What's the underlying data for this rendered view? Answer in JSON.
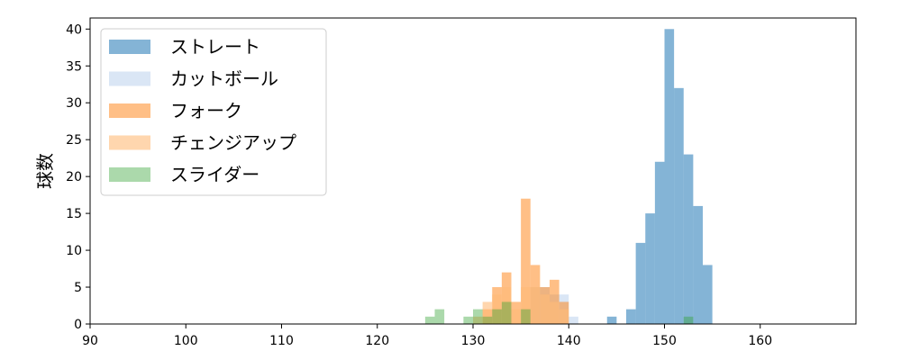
{
  "chart_data": {
    "type": "bar",
    "subtype": "overlaid-histogram",
    "ylabel": "球数",
    "xlim": [
      90,
      170
    ],
    "ylim": [
      0,
      41.5
    ],
    "xticks": [
      90,
      100,
      110,
      120,
      130,
      140,
      150,
      160
    ],
    "yticks": [
      0,
      5,
      10,
      15,
      20,
      25,
      30,
      35,
      40
    ],
    "bin_width": 1,
    "legend_position": "upper-left",
    "series": [
      {
        "name": "ストレート",
        "color": "#1f77b4",
        "opacity": 0.55,
        "bins": [
          [
            144,
            1
          ],
          [
            146,
            2
          ],
          [
            147,
            11
          ],
          [
            148,
            15
          ],
          [
            149,
            22
          ],
          [
            150,
            40
          ],
          [
            151,
            32
          ],
          [
            152,
            23
          ],
          [
            153,
            16
          ],
          [
            154,
            8
          ]
        ]
      },
      {
        "name": "カットボール",
        "color": "#aec7e8",
        "opacity": 0.45,
        "bins": [
          [
            136,
            5
          ],
          [
            137,
            5
          ],
          [
            138,
            4
          ],
          [
            139,
            4
          ],
          [
            140,
            1
          ]
        ]
      },
      {
        "name": "フォーク",
        "color": "#ff7f0e",
        "opacity": 0.5,
        "bins": [
          [
            131,
            2
          ],
          [
            132,
            5
          ],
          [
            133,
            7
          ],
          [
            134,
            3
          ],
          [
            135,
            17
          ],
          [
            136,
            8
          ],
          [
            137,
            5
          ],
          [
            138,
            6
          ],
          [
            139,
            3
          ]
        ]
      },
      {
        "name": "チェンジアップ",
        "color": "#ffbb78",
        "opacity": 0.6,
        "bins": [
          [
            130,
            1
          ],
          [
            131,
            3
          ],
          [
            132,
            4
          ],
          [
            133,
            5
          ],
          [
            134,
            2
          ],
          [
            135,
            5
          ],
          [
            136,
            5
          ],
          [
            137,
            4
          ],
          [
            138,
            3
          ],
          [
            139,
            2
          ]
        ]
      },
      {
        "name": "スライダー",
        "color": "#2ca02c",
        "opacity": 0.4,
        "bins": [
          [
            125,
            1
          ],
          [
            126,
            2
          ],
          [
            129,
            1
          ],
          [
            130,
            2
          ],
          [
            131,
            1
          ],
          [
            132,
            2
          ],
          [
            133,
            3
          ],
          [
            135,
            2
          ],
          [
            152,
            1
          ]
        ]
      }
    ]
  }
}
